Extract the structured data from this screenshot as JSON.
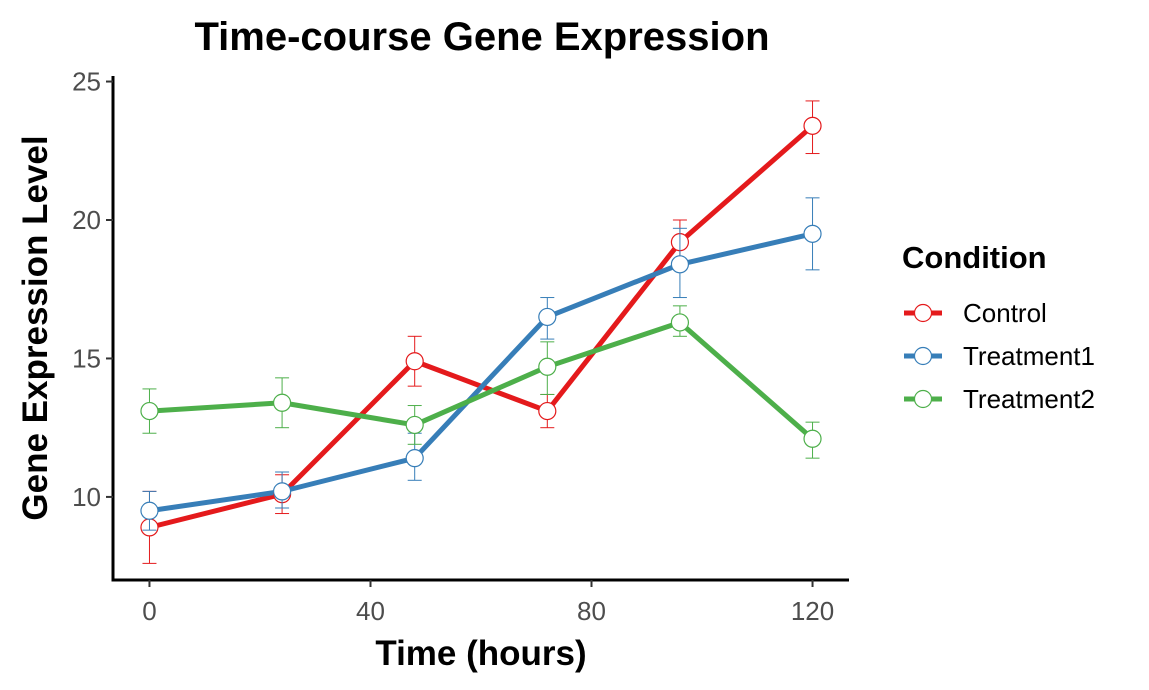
{
  "chart_data": {
    "type": "line",
    "title": "Time-course Gene Expression",
    "xlabel": "Time (hours)",
    "ylabel": "Gene Expression Level",
    "x": [
      0,
      24,
      48,
      72,
      96,
      120
    ],
    "xlim": [
      -6.6,
      126.6
    ],
    "ylim": [
      7.0,
      25.2
    ],
    "xticks": [
      0,
      40,
      80,
      120
    ],
    "yticks": [
      10,
      15,
      20,
      25
    ],
    "grid": false,
    "legend": {
      "title": "Condition",
      "position": "right"
    },
    "series": [
      {
        "name": "Control",
        "color": "#E41A1C",
        "values": [
          8.9,
          10.1,
          14.9,
          13.1,
          19.2,
          23.4
        ],
        "error": [
          [
            7.6,
            10.2
          ],
          [
            9.4,
            10.8
          ],
          [
            14.0,
            15.8
          ],
          [
            12.5,
            13.7
          ],
          [
            18.4,
            20.0
          ],
          [
            22.4,
            24.3
          ]
        ]
      },
      {
        "name": "Treatment1",
        "color": "#377EB8",
        "values": [
          9.5,
          10.2,
          11.4,
          16.5,
          18.4,
          19.5
        ],
        "error": [
          [
            8.8,
            10.2
          ],
          [
            9.6,
            10.9
          ],
          [
            10.6,
            12.3
          ],
          [
            15.7,
            17.2
          ],
          [
            17.2,
            19.7
          ],
          [
            18.2,
            20.8
          ]
        ]
      },
      {
        "name": "Treatment2",
        "color": "#4DAF4A",
        "values": [
          13.1,
          13.4,
          12.6,
          14.7,
          16.3,
          12.1
        ],
        "error": [
          [
            12.3,
            13.9
          ],
          [
            12.5,
            14.3
          ],
          [
            11.9,
            13.3
          ],
          [
            13.7,
            15.6
          ],
          [
            15.8,
            16.9
          ],
          [
            11.4,
            12.7
          ]
        ]
      }
    ]
  }
}
